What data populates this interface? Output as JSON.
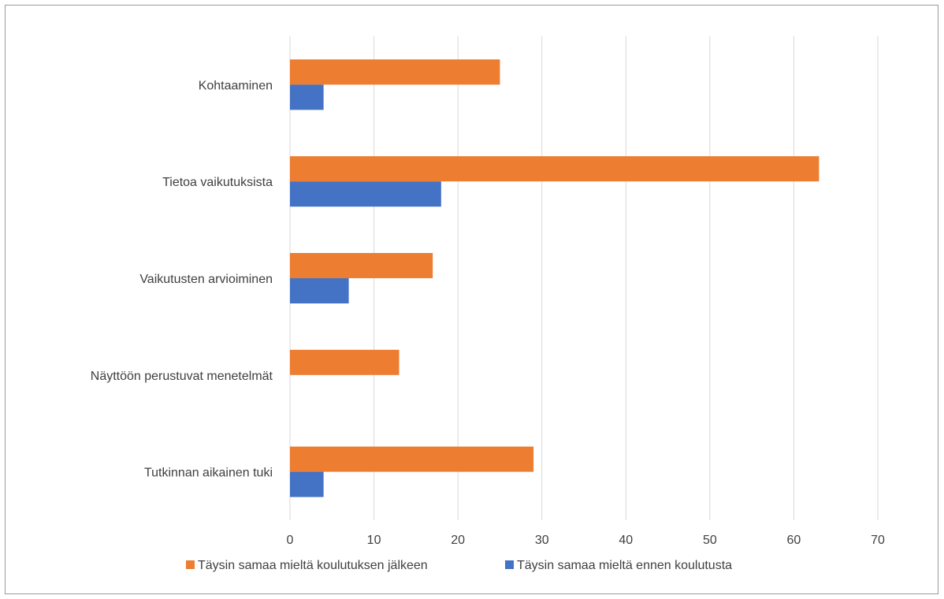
{
  "chart_data": {
    "type": "bar",
    "orientation": "horizontal",
    "title": "",
    "xlabel": "",
    "ylabel": "",
    "categories": [
      "Kohtaaminen",
      "Tietoa vaikutuksista",
      "Vaikutusten arvioiminen",
      "Näyttöön perustuvat menetelmät",
      "Tutkinnan aikainen tuki"
    ],
    "series": [
      {
        "name": "Täysin samaa mieltä koulutuksen jälkeen",
        "color": "#ED7D31",
        "values": [
          25,
          63,
          17,
          13,
          29
        ]
      },
      {
        "name": "Täysin samaa mieltä ennen koulutusta",
        "color": "#4472C4",
        "values": [
          4,
          18,
          7,
          0,
          4
        ]
      }
    ],
    "xlim": [
      0,
      70
    ],
    "ticks": [
      "0",
      "10",
      "20",
      "30",
      "40",
      "50",
      "60",
      "70"
    ],
    "grid": true,
    "legend_position": "bottom"
  }
}
